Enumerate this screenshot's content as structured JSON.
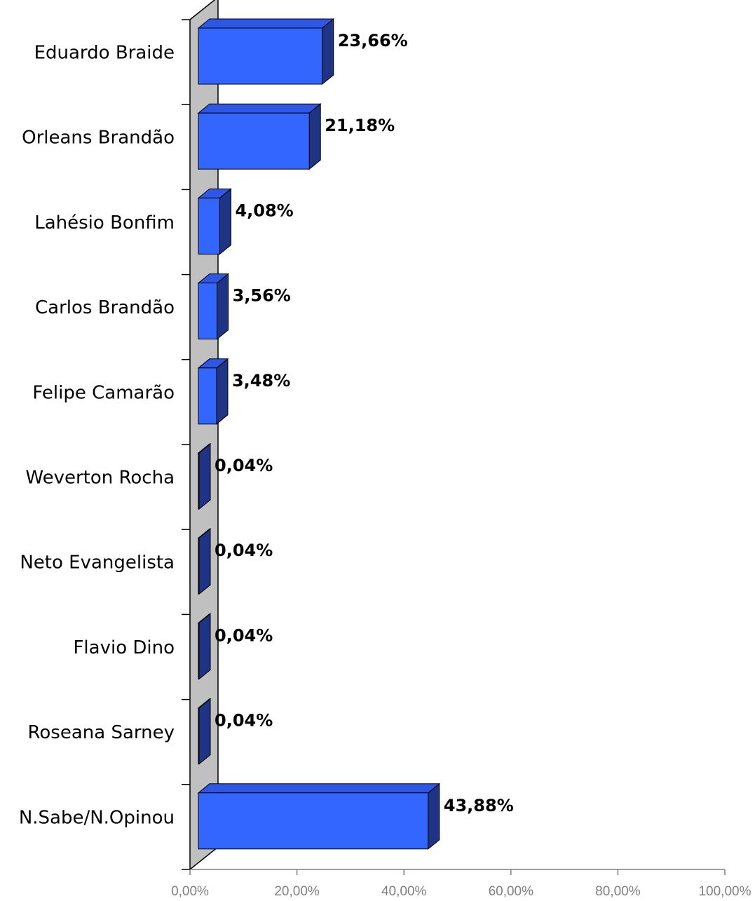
{
  "chart_data": {
    "type": "bar",
    "orientation": "horizontal",
    "style": "3d",
    "categories": [
      "Eduardo Braide",
      "Orleans Brandão",
      "Lahésio Bonfim",
      "Carlos Brandão",
      "Felipe Camarão",
      "Weverton Rocha",
      "Neto Evangelista",
      "Flavio Dino",
      "Roseana Sarney",
      "N.Sabe/N.Opinou"
    ],
    "values": [
      23.66,
      21.18,
      4.08,
      3.56,
      3.48,
      0.04,
      0.04,
      0.04,
      0.04,
      43.88
    ],
    "value_labels": [
      "23,66%",
      "21,18%",
      "4,08%",
      "3,56%",
      "3,48%",
      "0,04%",
      "0,04%",
      "0,04%",
      "0,04%",
      "43,88%"
    ],
    "xlim": [
      0,
      100
    ],
    "xticks": [
      0,
      20,
      40,
      60,
      80,
      100
    ],
    "xtick_labels": [
      "0,00%",
      "20,00%",
      "40,00%",
      "60,00%",
      "80,00%",
      "100,00%"
    ],
    "title": "",
    "xlabel": "",
    "ylabel": "",
    "grid": false,
    "legend": "none",
    "colors": {
      "bar_front": "#3366FF",
      "bar_top": "#2E57E6",
      "bar_side": "#1F3484",
      "wall": "#C0C0C0",
      "axis": "#000000",
      "tick_text": "#7F7F7F"
    }
  }
}
